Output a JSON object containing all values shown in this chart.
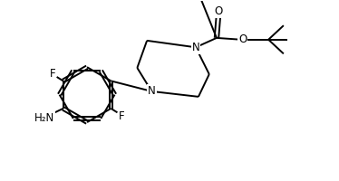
{
  "bg_color": "#ffffff",
  "line_color": "#000000",
  "line_width": 1.4,
  "font_size": 8.5,
  "figsize": [
    3.74,
    2.0
  ],
  "dpi": 100,
  "xlim": [
    0,
    10
  ],
  "ylim": [
    0,
    5.35
  ]
}
